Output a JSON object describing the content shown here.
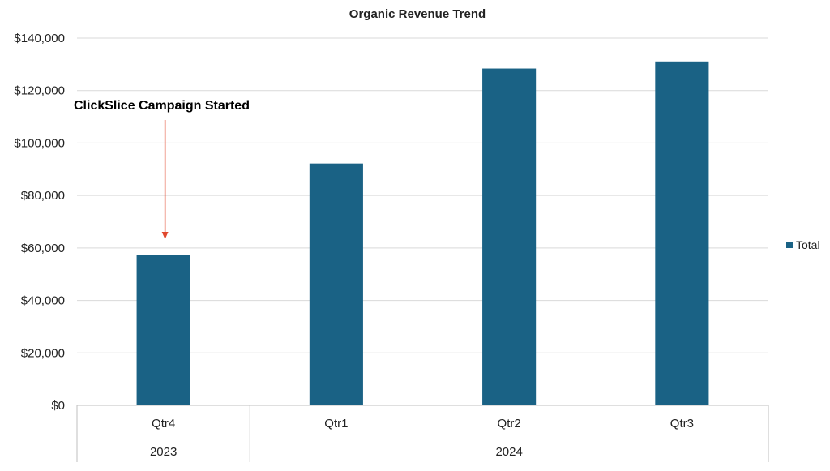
{
  "chart_data": {
    "type": "bar",
    "title": "Organic Revenue Trend",
    "xlabel": "",
    "ylabel": "",
    "categories": [
      "Qtr4",
      "Qtr1",
      "Qtr2",
      "Qtr3"
    ],
    "category_groups": [
      {
        "label": "2023",
        "categories": [
          "Qtr4"
        ]
      },
      {
        "label": "2024",
        "categories": [
          "Qtr1",
          "Qtr2",
          "Qtr3"
        ]
      }
    ],
    "series": [
      {
        "name": "Total",
        "color": "#1a6285",
        "values": [
          57200,
          92200,
          128400,
          131100
        ]
      }
    ],
    "ylim": [
      0,
      140000
    ],
    "yticks": [
      0,
      20000,
      40000,
      60000,
      80000,
      100000,
      120000,
      140000
    ],
    "ytick_labels": [
      "$0",
      "$20,000",
      "$40,000",
      "$60,000",
      "$80,000",
      "$100,000",
      "$120,000",
      "$140,000"
    ],
    "grid": true,
    "legend_position": "right",
    "annotation": {
      "text": "ClickSlice Campaign Started",
      "category": "Qtr4",
      "arrow_color": "#e0482e"
    }
  }
}
